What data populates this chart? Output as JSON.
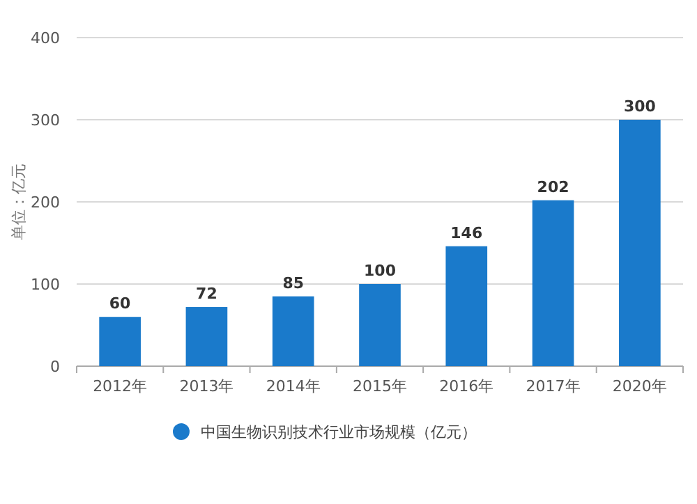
{
  "chart_data": {
    "type": "bar",
    "ylabel": "单位：亿元",
    "categories": [
      "2012年",
      "2013年",
      "2014年",
      "2015年",
      "2016年",
      "2017年",
      "2020年"
    ],
    "series": [
      {
        "name": "中国生物识别技术行业市场规模（亿元）",
        "color": "#1a7acb",
        "values": [
          60,
          72,
          85,
          100,
          146,
          202,
          300
        ]
      }
    ],
    "ylim": [
      0,
      400
    ],
    "yticks": [
      0,
      100,
      200,
      300,
      400
    ],
    "grid": "y",
    "legend": "bottom",
    "data_labels": true
  }
}
